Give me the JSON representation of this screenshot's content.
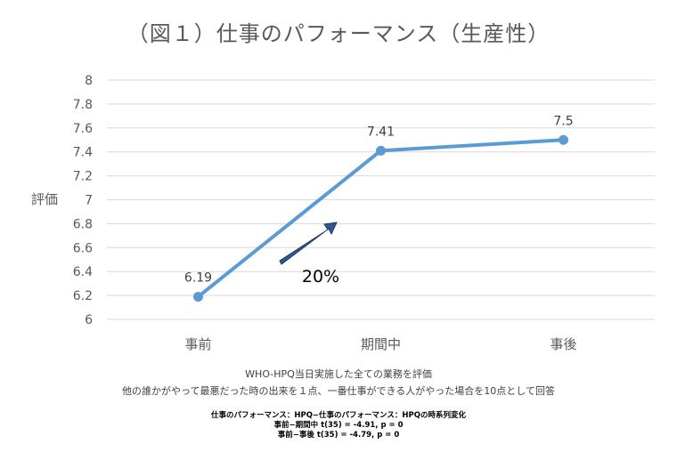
{
  "chart_data": {
    "type": "line",
    "title": "（図１）仕事のパフォーマンス（生産性）",
    "ylabel": "評価",
    "xlabel": "",
    "categories": [
      "事前",
      "期間中",
      "事後"
    ],
    "series": [
      {
        "values": [
          6.19,
          7.41,
          7.5
        ],
        "color": "#5B9BD5"
      }
    ],
    "data_labels": [
      "6.19",
      "7.41",
      "7.5"
    ],
    "ylim": [
      6,
      8
    ],
    "y_ticks": [
      6,
      6.2,
      6.4,
      6.6,
      6.8,
      7,
      7.2,
      7.4,
      7.6,
      7.8,
      8
    ],
    "grid": true,
    "annotation": "20%",
    "annotation_color": "#1F3864"
  },
  "notes": {
    "line1": "WHO-HPQ当日実施した全ての業務を評価",
    "line2": "他の誰かがやって最悪だった時の出来を１点、一番仕事ができる人がやった場合を10点として回答"
  },
  "stats": {
    "heading": "仕事のパフォーマンス：HPQ−仕事のパフォーマンス：HPQの時系列変化",
    "row1": "事前−期間中 t(35) = -4.91, p = 0",
    "row2": "事前−事後 t(35) = -4.79, p = 0"
  }
}
